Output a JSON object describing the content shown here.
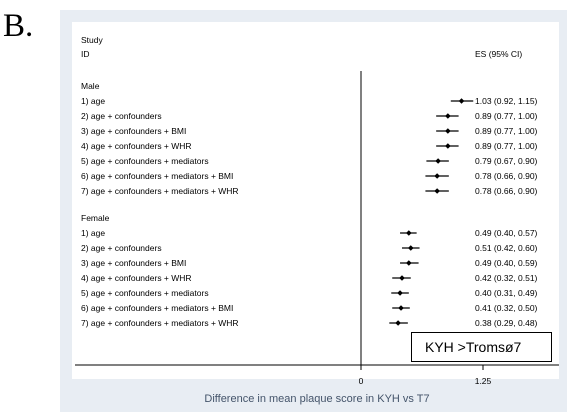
{
  "panel_label": "B.",
  "annotation_box": "KYH >Tromsø7",
  "chart_data": {
    "type": "forest",
    "header": {
      "study": "Study",
      "id": "ID",
      "es": "ES (95% CI)"
    },
    "xlabel": "Difference in mean plaque score in KYH vs T7",
    "x_ticks": [
      0,
      1.25
    ],
    "x_tick_labels": [
      "0",
      "1.25"
    ],
    "xlim": [
      -1.85,
      1.25
    ],
    "reference_line": 0,
    "groups": [
      {
        "name": "Male",
        "rows": [
          {
            "label": "1) age",
            "es": 1.03,
            "lo": 0.92,
            "hi": 1.15,
            "text": "1.03 (0.92, 1.15)"
          },
          {
            "label": "2) age + confounders",
            "es": 0.89,
            "lo": 0.77,
            "hi": 1.0,
            "text": "0.89 (0.77, 1.00)"
          },
          {
            "label": "3) age + confounders + BMI",
            "es": 0.89,
            "lo": 0.77,
            "hi": 1.0,
            "text": "0.89 (0.77, 1.00)"
          },
          {
            "label": "4) age + confounders + WHR",
            "es": 0.89,
            "lo": 0.77,
            "hi": 1.0,
            "text": "0.89 (0.77, 1.00)"
          },
          {
            "label": "5) age + confounders + mediators",
            "es": 0.79,
            "lo": 0.67,
            "hi": 0.9,
            "text": "0.79 (0.67, 0.90)"
          },
          {
            "label": "6) age + confounders + mediators + BMI",
            "es": 0.78,
            "lo": 0.66,
            "hi": 0.9,
            "text": "0.78 (0.66, 0.90)"
          },
          {
            "label": "7) age + confounders + mediators + WHR",
            "es": 0.78,
            "lo": 0.66,
            "hi": 0.9,
            "text": "0.78 (0.66, 0.90)"
          }
        ]
      },
      {
        "name": "Female",
        "rows": [
          {
            "label": "1) age",
            "es": 0.49,
            "lo": 0.4,
            "hi": 0.57,
            "text": "0.49 (0.40, 0.57)"
          },
          {
            "label": "2) age + confounders",
            "es": 0.51,
            "lo": 0.42,
            "hi": 0.6,
            "text": "0.51 (0.42, 0.60)"
          },
          {
            "label": "3) age + confounders + BMI",
            "es": 0.49,
            "lo": 0.4,
            "hi": 0.59,
            "text": "0.49 (0.40, 0.59)"
          },
          {
            "label": "4) age + confounders + WHR",
            "es": 0.42,
            "lo": 0.32,
            "hi": 0.51,
            "text": "0.42 (0.32, 0.51)"
          },
          {
            "label": "5) age + confounders + mediators",
            "es": 0.4,
            "lo": 0.31,
            "hi": 0.49,
            "text": "0.40 (0.31, 0.49)"
          },
          {
            "label": "6) age + confounders + mediators + BMI",
            "es": 0.41,
            "lo": 0.32,
            "hi": 0.5,
            "text": "0.41 (0.32, 0.50)"
          },
          {
            "label": "7) age + confounders + mediators + WHR",
            "es": 0.38,
            "lo": 0.29,
            "hi": 0.48,
            "text": "0.38 (0.29, 0.48)"
          }
        ]
      }
    ],
    "colors": {
      "background": "#e8edf3",
      "inner": "#ffffff",
      "marks": "#000000",
      "xlabel": "#44546a"
    }
  }
}
